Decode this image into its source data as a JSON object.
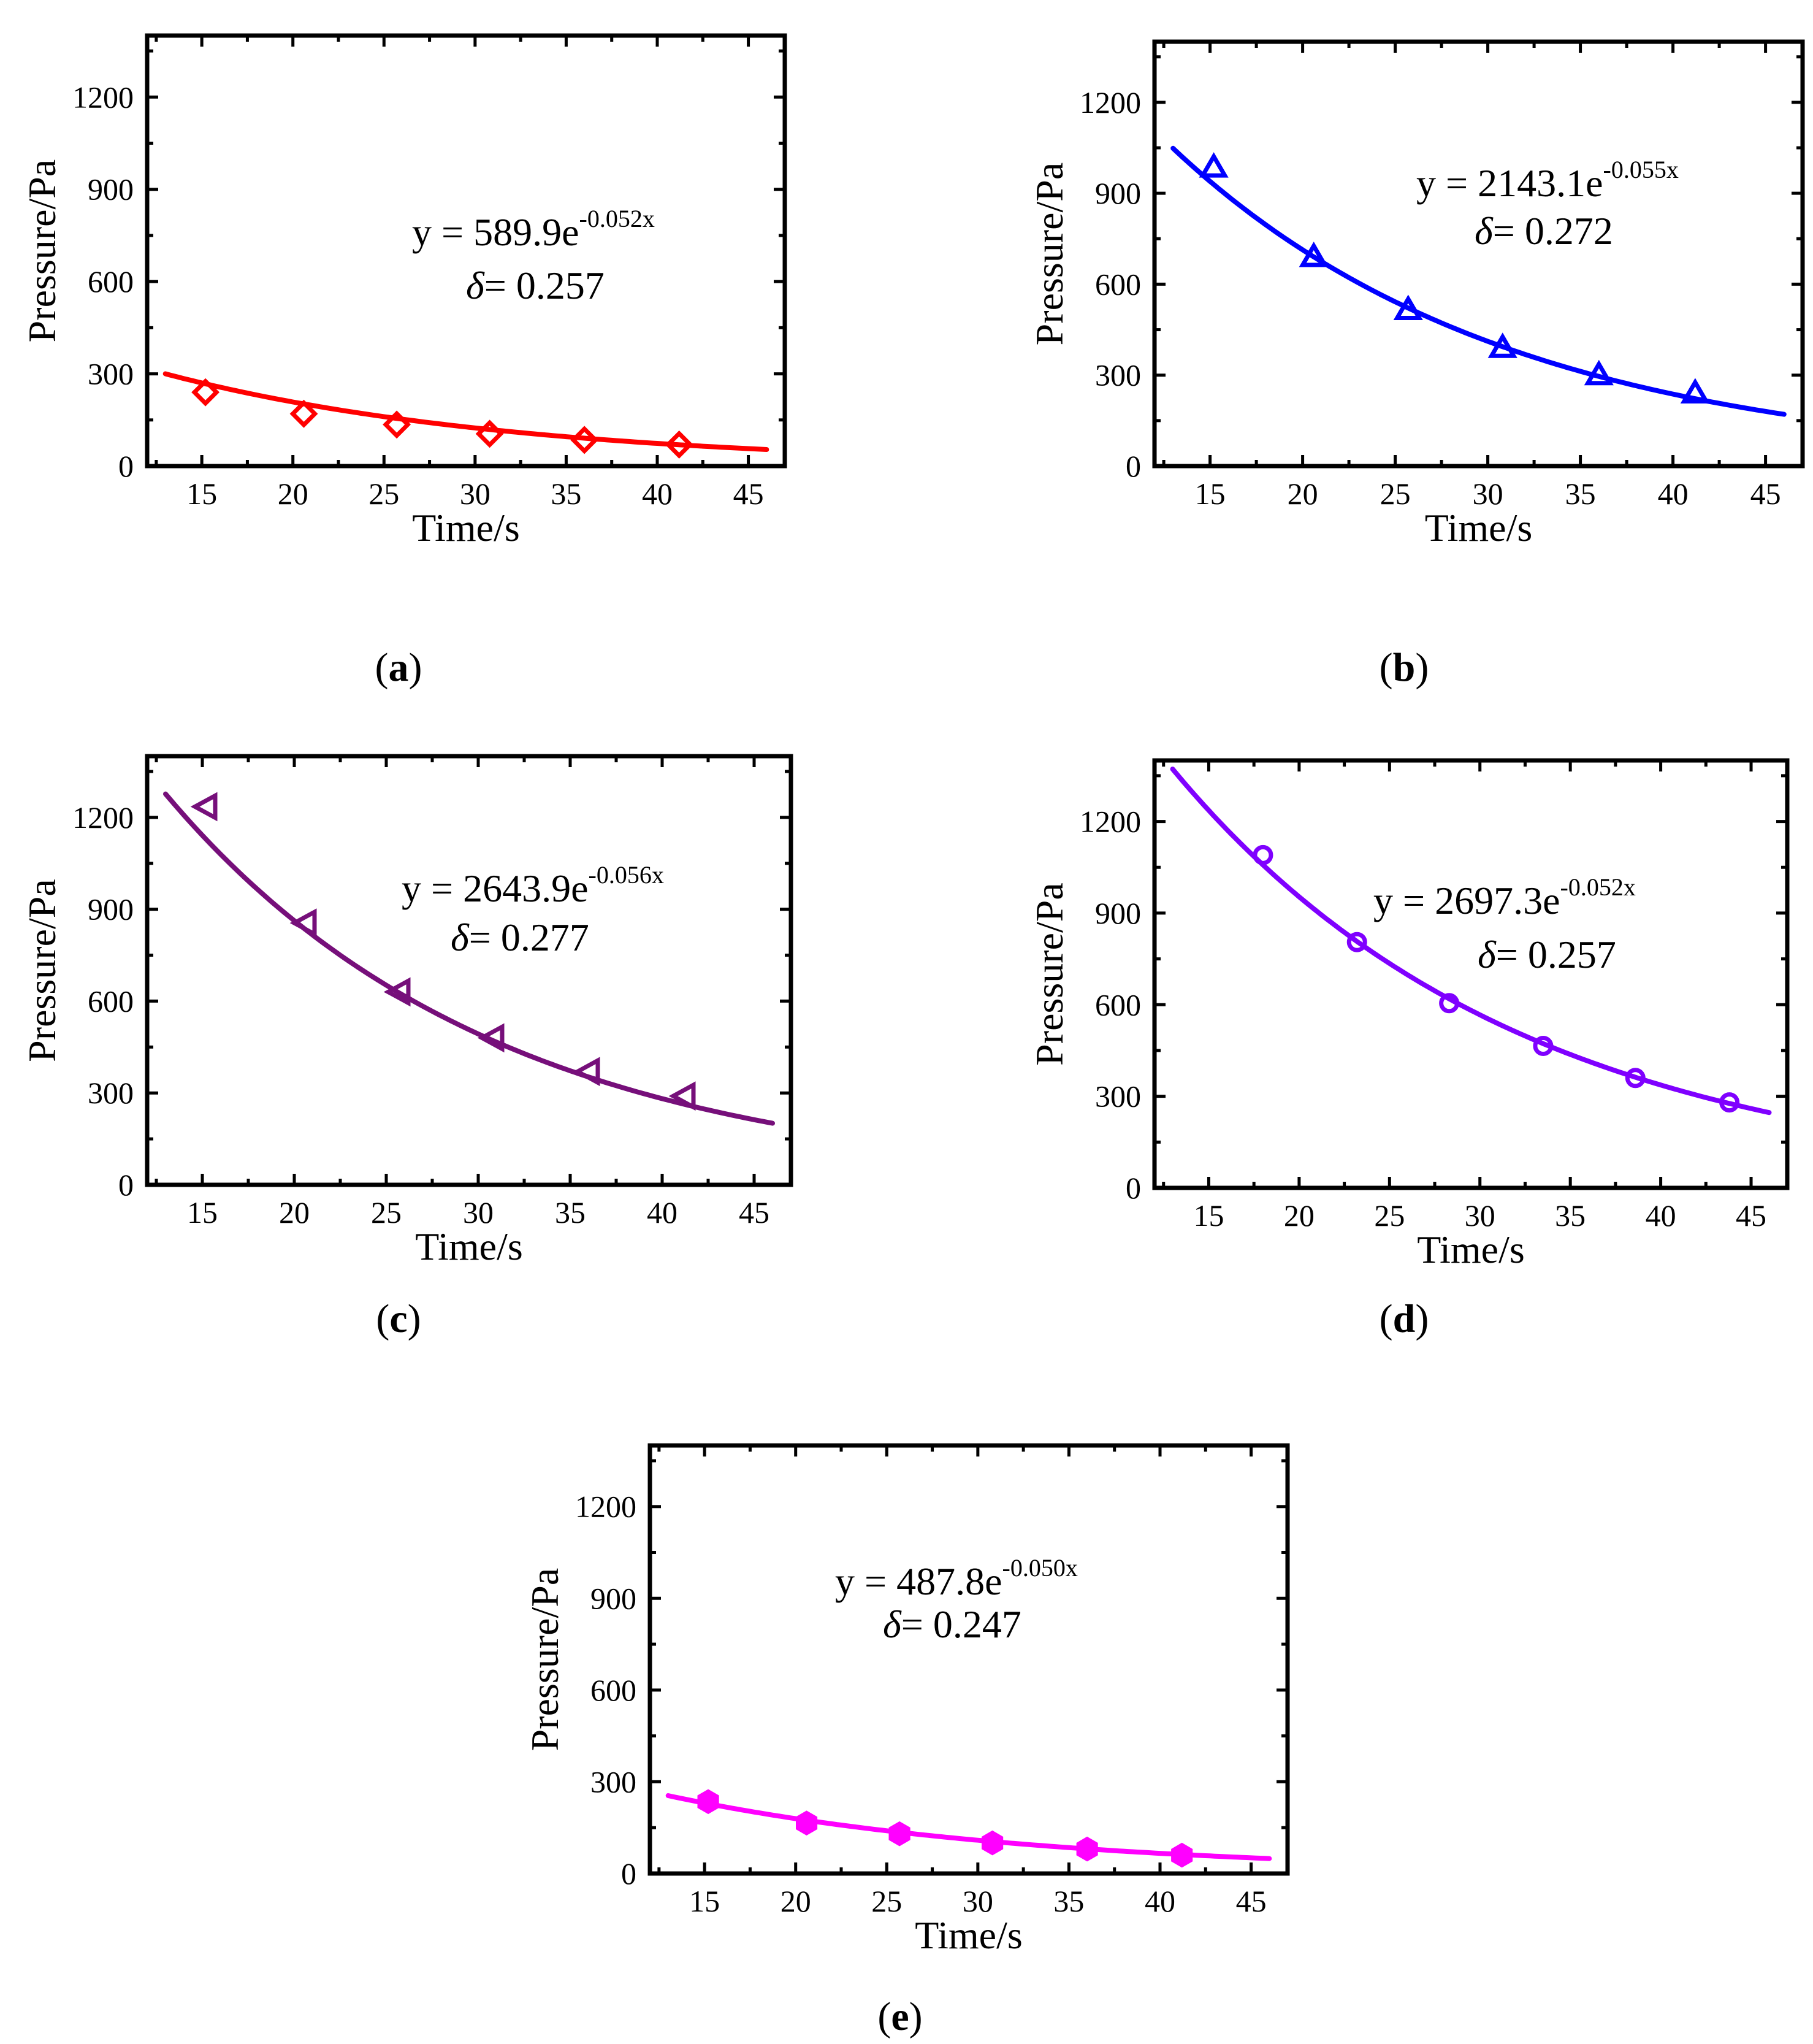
{
  "figure": {
    "x_axis_title": "Time/s",
    "y_axis_title": "Pressure/Pa",
    "delta_symbol": "δ",
    "delta_sep": "= "
  },
  "chart_data": [
    {
      "type": "scatter",
      "panel_label": "a",
      "color": "#ff0000",
      "marker": "diamond",
      "equation_prefix": "y = 589.9e",
      "equation_exponent": "-0.052x",
      "delta_value": "0.257",
      "fit": {
        "a": 589.9,
        "b": 0.052
      },
      "x": [
        15.2,
        20.6,
        25.7,
        30.8,
        36.0,
        41.2
      ],
      "y": [
        240,
        170,
        135,
        105,
        85,
        70
      ],
      "xlim": [
        12,
        47
      ],
      "ylim": [
        0,
        1400
      ],
      "xticks": [
        "15",
        "20",
        "25",
        "30",
        "35",
        "40",
        "45"
      ],
      "yticks": [
        "0",
        "300",
        "600",
        "900",
        "1200"
      ],
      "xlabel": "Time/s",
      "ylabel": "Pressure/Pa"
    },
    {
      "type": "scatter",
      "panel_label": "b",
      "color": "#0000ff",
      "marker": "triangle-up",
      "equation_prefix": "y = 2143.1e",
      "equation_exponent": "-0.055x",
      "delta_value": "0.272",
      "fit": {
        "a": 2143.1,
        "b": 0.055
      },
      "x": [
        15.2,
        20.6,
        25.7,
        30.8,
        36.0,
        41.2
      ],
      "y": [
        985,
        690,
        515,
        390,
        300,
        240
      ],
      "xlim": [
        12,
        47
      ],
      "ylim": [
        0,
        1400
      ],
      "xticks": [
        "15",
        "20",
        "25",
        "30",
        "35",
        "40",
        "45"
      ],
      "yticks": [
        "0",
        "300",
        "600",
        "900",
        "1200"
      ],
      "xlabel": "Time/s",
      "ylabel": "Pressure/Pa"
    },
    {
      "type": "scatter",
      "panel_label": "c",
      "color": "#760f7a",
      "marker": "triangle-left",
      "equation_prefix": "y = 2643.9e",
      "equation_exponent": "-0.056x",
      "delta_value": "0.277",
      "fit": {
        "a": 2643.9,
        "b": 0.056
      },
      "x": [
        15.2,
        20.6,
        25.7,
        30.8,
        36.0,
        41.2
      ],
      "y": [
        1235,
        855,
        630,
        480,
        370,
        290
      ],
      "xlim": [
        12,
        47
      ],
      "ylim": [
        0,
        1400
      ],
      "xticks": [
        "15",
        "20",
        "25",
        "30",
        "35",
        "40",
        "45"
      ],
      "yticks": [
        "0",
        "300",
        "600",
        "900",
        "1200"
      ],
      "xlabel": "Time/s",
      "ylabel": "Pressure/Pa"
    },
    {
      "type": "scatter",
      "panel_label": "d",
      "color": "#7f00ff",
      "marker": "circle",
      "equation_prefix": "y = 2697.3e",
      "equation_exponent": "-0.052x",
      "delta_value": "0.257",
      "fit": {
        "a": 2697.3,
        "b": 0.052
      },
      "x": [
        18.0,
        23.2,
        28.3,
        33.5,
        38.6,
        43.8
      ],
      "y": [
        1090,
        805,
        605,
        465,
        360,
        280
      ],
      "xlim": [
        12,
        47
      ],
      "ylim": [
        0,
        1400
      ],
      "xticks": [
        "15",
        "20",
        "25",
        "30",
        "35",
        "40",
        "45"
      ],
      "yticks": [
        "0",
        "300",
        "600",
        "900",
        "1200"
      ],
      "xlabel": "Time/s",
      "ylabel": "Pressure/Pa"
    },
    {
      "type": "scatter",
      "panel_label": "e",
      "color": "#ff00ff",
      "marker": "hexagon",
      "equation_prefix": "y = 487.8e",
      "equation_exponent": "-0.050x",
      "delta_value": "0.247",
      "fit": {
        "a": 487.8,
        "b": 0.05
      },
      "x": [
        15.2,
        20.6,
        25.7,
        30.8,
        36.0,
        41.2
      ],
      "y": [
        235,
        165,
        130,
        100,
        80,
        60
      ],
      "xlim": [
        12,
        47
      ],
      "ylim": [
        0,
        1400
      ],
      "xticks": [
        "15",
        "20",
        "25",
        "30",
        "35",
        "40",
        "45"
      ],
      "yticks": [
        "0",
        "300",
        "600",
        "900",
        "1200"
      ],
      "xlabel": "Time/s",
      "ylabel": "Pressure/Pa"
    }
  ]
}
